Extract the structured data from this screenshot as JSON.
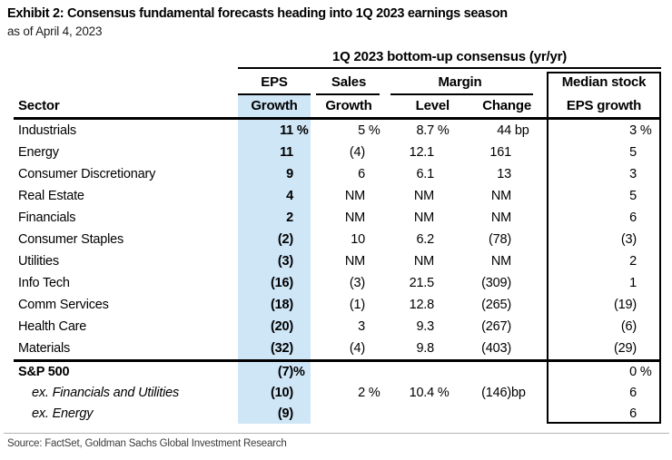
{
  "exhibit": {
    "title": "Exhibit 2: Consensus fundamental forecasts heading into 1Q 2023 earnings season",
    "as_of": "as of April 4, 2023",
    "source": "Source: FactSet, Goldman Sachs Global Investment Research"
  },
  "colors": {
    "eps_growth_highlight": "#cfe6f7",
    "line_black": "#000000",
    "rule_gray": "#b3b3b3",
    "source_text": "#3c3c3c"
  },
  "chart_data": {
    "type": "table",
    "title": "1Q 2023 bottom-up consensus (yr/yr)",
    "column_groups": {
      "eps": "EPS",
      "sales": "Sales",
      "margin": "Margin",
      "median_line1": "Median stock",
      "median_line2": "EPS growth"
    },
    "columns": {
      "sector": "Sector",
      "eps_growth": "Growth",
      "sales_growth": "Growth",
      "margin_level": "Level",
      "margin_change": "Change"
    },
    "units": {
      "growth": "%",
      "margin_change": "bp"
    },
    "rows": [
      {
        "sector": "Industrials",
        "style": "normal",
        "cells": [
          [
            "11",
            " %"
          ],
          [
            "5",
            " %"
          ],
          [
            "8.7",
            " %"
          ],
          [
            "44",
            " bp"
          ],
          [
            "3",
            " %"
          ]
        ]
      },
      {
        "sector": "Energy",
        "style": "normal",
        "cells": [
          [
            "11",
            ""
          ],
          [
            "(4)",
            ""
          ],
          [
            "12.1",
            ""
          ],
          [
            "161",
            ""
          ],
          [
            "5",
            ""
          ]
        ]
      },
      {
        "sector": "Consumer Discretionary",
        "style": "normal",
        "cells": [
          [
            "9",
            ""
          ],
          [
            "6",
            ""
          ],
          [
            "6.1",
            ""
          ],
          [
            "13",
            ""
          ],
          [
            "3",
            ""
          ]
        ]
      },
      {
        "sector": "Real Estate",
        "style": "normal",
        "cells": [
          [
            "4",
            ""
          ],
          [
            "NM",
            ""
          ],
          [
            "NM",
            ""
          ],
          [
            "NM",
            ""
          ],
          [
            "5",
            ""
          ]
        ]
      },
      {
        "sector": "Financials",
        "style": "normal",
        "cells": [
          [
            "2",
            ""
          ],
          [
            "NM",
            ""
          ],
          [
            "NM",
            ""
          ],
          [
            "NM",
            ""
          ],
          [
            "6",
            ""
          ]
        ]
      },
      {
        "sector": "Consumer Staples",
        "style": "normal",
        "cells": [
          [
            "(2)",
            ""
          ],
          [
            "10",
            ""
          ],
          [
            "6.2",
            ""
          ],
          [
            "(78)",
            ""
          ],
          [
            "(3)",
            ""
          ]
        ]
      },
      {
        "sector": "Utilities",
        "style": "normal",
        "cells": [
          [
            "(3)",
            ""
          ],
          [
            "NM",
            ""
          ],
          [
            "NM",
            ""
          ],
          [
            "NM",
            ""
          ],
          [
            "2",
            ""
          ]
        ]
      },
      {
        "sector": "Info Tech",
        "style": "normal",
        "cells": [
          [
            "(16)",
            ""
          ],
          [
            "(3)",
            ""
          ],
          [
            "21.5",
            ""
          ],
          [
            "(309)",
            ""
          ],
          [
            "1",
            ""
          ]
        ]
      },
      {
        "sector": "Comm Services",
        "style": "normal",
        "cells": [
          [
            "(18)",
            ""
          ],
          [
            "(1)",
            ""
          ],
          [
            "12.8",
            ""
          ],
          [
            "(265)",
            ""
          ],
          [
            "(19)",
            ""
          ]
        ]
      },
      {
        "sector": "Health Care",
        "style": "normal",
        "cells": [
          [
            "(20)",
            ""
          ],
          [
            "3",
            ""
          ],
          [
            "9.3",
            ""
          ],
          [
            "(267)",
            ""
          ],
          [
            "(6)",
            ""
          ]
        ]
      },
      {
        "sector": "Materials",
        "style": "normal",
        "cells": [
          [
            "(32)",
            ""
          ],
          [
            "(4)",
            ""
          ],
          [
            "9.8",
            ""
          ],
          [
            "(403)",
            ""
          ],
          [
            "(29)",
            ""
          ]
        ]
      }
    ],
    "summary_rows": [
      {
        "sector": "S&P 500",
        "style": "bold",
        "cells": [
          [
            "(7)",
            "%"
          ],
          [
            "",
            ""
          ],
          [
            "",
            ""
          ],
          [
            "",
            ""
          ],
          [
            "0",
            " %"
          ]
        ]
      },
      {
        "sector": "ex. Financials and Utilities",
        "style": "italic",
        "cells": [
          [
            "(10)",
            ""
          ],
          [
            "2",
            " %"
          ],
          [
            "10.4",
            " %"
          ],
          [
            "(146)",
            "bp"
          ],
          [
            "6",
            ""
          ]
        ]
      },
      {
        "sector": "ex. Energy",
        "style": "italic",
        "cells": [
          [
            "(9)",
            ""
          ],
          [
            "",
            ""
          ],
          [
            "",
            ""
          ],
          [
            "",
            ""
          ],
          [
            "6",
            ""
          ]
        ]
      }
    ]
  }
}
